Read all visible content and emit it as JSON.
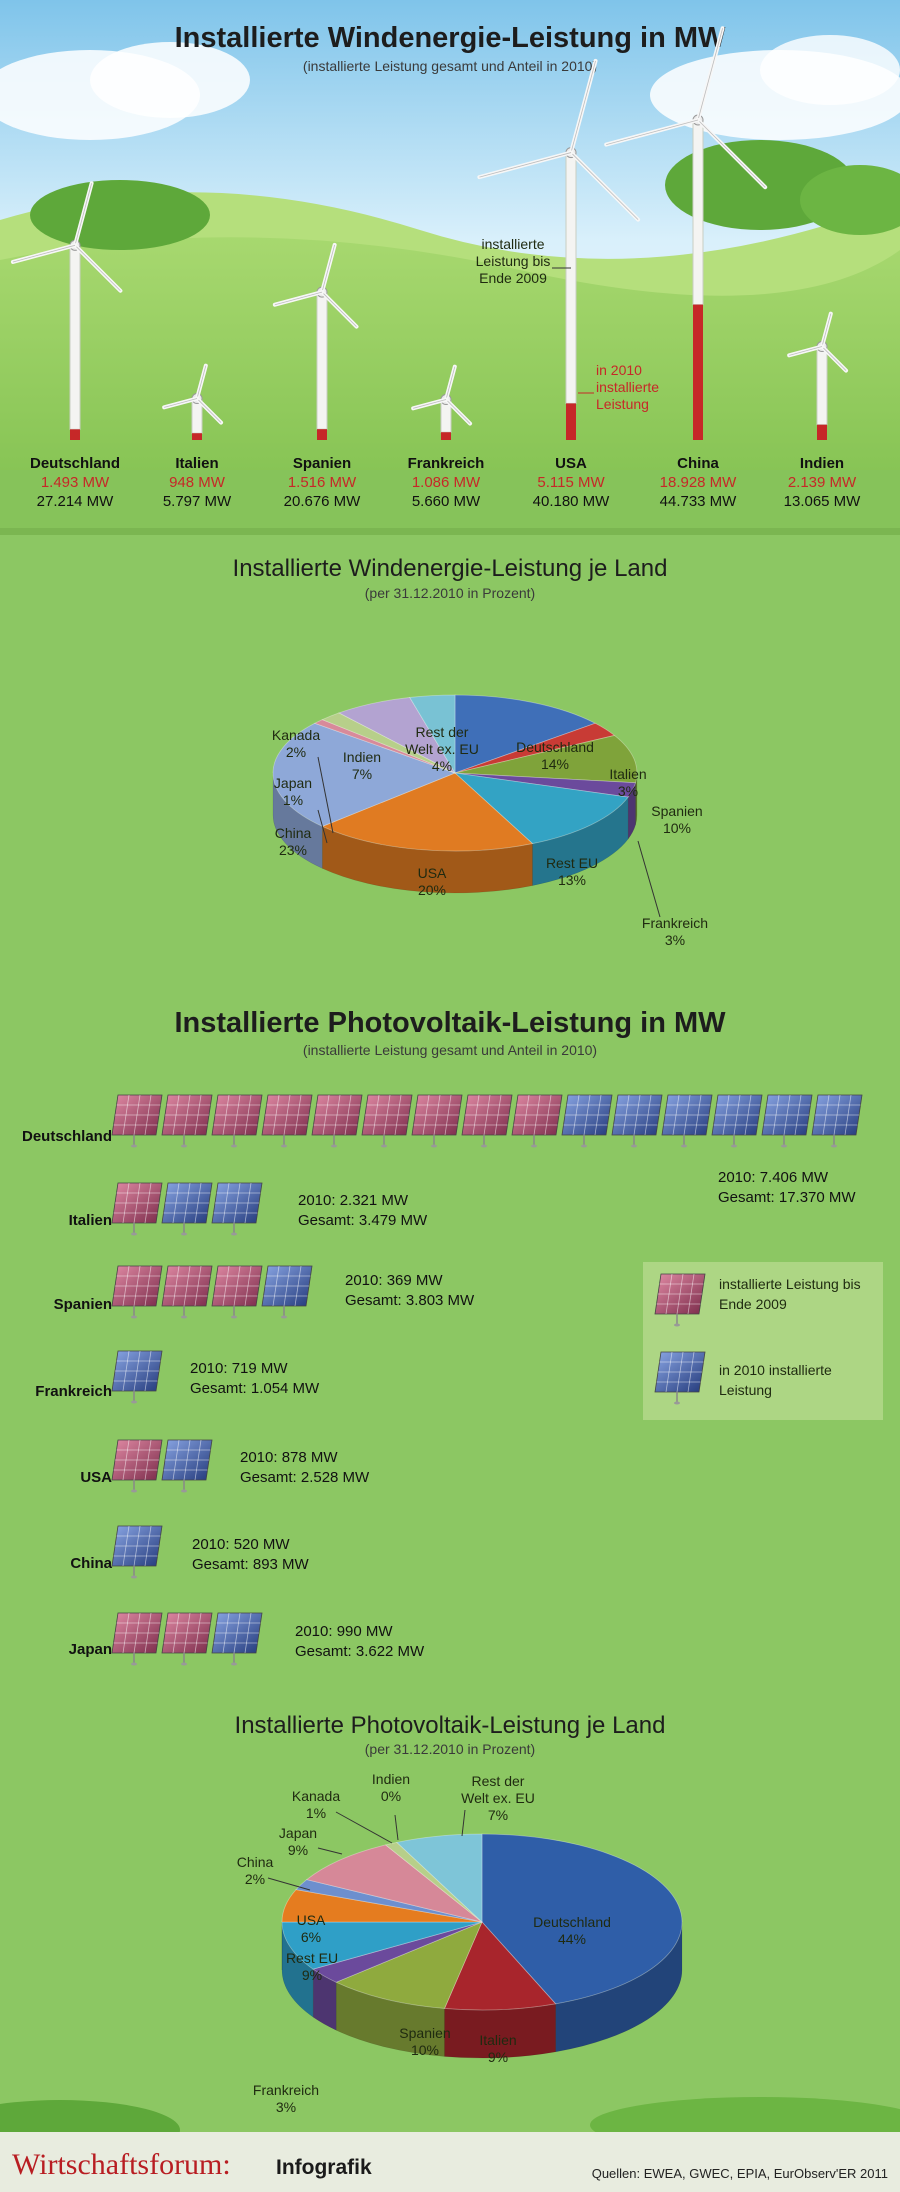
{
  "colors": {
    "sky": "#bfe3f5",
    "grass": "#8cc763",
    "red": "#c62828",
    "panel_red": "#b0486b",
    "panel_blue": "#3c5fae"
  },
  "wind": {
    "title": "Installierte Windenergie-Leistung in MW",
    "subtitle": "(installierte Leistung gesamt und Anteil in 2010)",
    "annot_total": "installierte Leistung bis Ende 2009",
    "annot_2010": "in 2010 installierte Leistung",
    "countries": [
      {
        "name": "Deutschland",
        "y2010": "1.493 MW",
        "total": "27.214 MW"
      },
      {
        "name": "Italien",
        "y2010": "948 MW",
        "total": "5.797 MW"
      },
      {
        "name": "Spanien",
        "y2010": "1.516 MW",
        "total": "20.676 MW"
      },
      {
        "name": "Frankreich",
        "y2010": "1.086 MW",
        "total": "5.660 MW"
      },
      {
        "name": "USA",
        "y2010": "5.115 MW",
        "total": "40.180 MW"
      },
      {
        "name": "China",
        "y2010": "18.928 MW",
        "total": "44.733 MW"
      },
      {
        "name": "Indien",
        "y2010": "2.139 MW",
        "total": "13.065 MW"
      }
    ]
  },
  "chart_data": [
    {
      "type": "bar",
      "title": "Installierte Windenergie-Leistung in MW",
      "subtitle": "(installierte Leistung gesamt und Anteil in 2010)",
      "categories": [
        "Deutschland",
        "Italien",
        "Spanien",
        "Frankreich",
        "USA",
        "China",
        "Indien"
      ],
      "series": [
        {
          "name": "installierte Leistung bis Ende 2009",
          "values": [
            25721,
            4849,
            19160,
            4574,
            35065,
            25805,
            10926
          ]
        },
        {
          "name": "in 2010 installierte Leistung",
          "values": [
            1493,
            948,
            1516,
            1086,
            5115,
            18928,
            2139
          ]
        }
      ]
    },
    {
      "type": "pie",
      "title": "Installierte Windenergie-Leistung je Land",
      "subtitle": "(per 31.12.2010 in Prozent)",
      "labels": [
        "Deutschland",
        "Italien",
        "Spanien",
        "Frankreich",
        "Rest EU",
        "USA",
        "China",
        "Japan",
        "Kanada",
        "Indien",
        "Rest der Welt ex. EU"
      ],
      "values": [
        14,
        3,
        10,
        3,
        13,
        20,
        23,
        1,
        2,
        7,
        4
      ],
      "value_labels": [
        "14%",
        "3%",
        "10%",
        "3%",
        "13%",
        "20%",
        "23%",
        "1%",
        "2%",
        "7%",
        "4%"
      ]
    },
    {
      "type": "bar",
      "title": "Installierte Photovoltaik-Leistung in MW",
      "subtitle": "(installierte Leistung gesamt und Anteil in 2010)",
      "categories": [
        "Deutschland",
        "Italien",
        "Spanien",
        "Frankreich",
        "USA",
        "China",
        "Japan"
      ],
      "series": [
        {
          "name": "installierte Leistung bis Ende 2009",
          "values": [
            9964,
            1158,
            3434,
            335,
            1650,
            373,
            2632
          ]
        },
        {
          "name": "in 2010 installierte Leistung",
          "values": [
            7406,
            2321,
            369,
            719,
            878,
            520,
            990
          ]
        }
      ]
    },
    {
      "type": "pie",
      "title": "Installierte Photovoltaik-Leistung je Land",
      "subtitle": "(per 31.12.2010 in Prozent)",
      "labels": [
        "Deutschland",
        "Italien",
        "Spanien",
        "Frankreich",
        "Rest EU",
        "USA",
        "China",
        "Japan",
        "Kanada",
        "Indien",
        "Rest der Welt ex. EU"
      ],
      "values": [
        44,
        9,
        10,
        3,
        9,
        6,
        2,
        9,
        1,
        0,
        7
      ],
      "value_labels": [
        "44%",
        "9%",
        "10%",
        "3%",
        "9%",
        "6%",
        "2%",
        "9%",
        "1%",
        "0%",
        "7%"
      ]
    }
  ],
  "pie_wind": {
    "title": "Installierte Windenergie-Leistung je Land",
    "subtitle": "(per 31.12.2010 in Prozent)"
  },
  "pv": {
    "title": "Installierte Photovoltaik-Leistung in MW",
    "subtitle": "(installierte Leistung gesamt und Anteil in 2010)",
    "rows": [
      {
        "name": "Deutschland",
        "y2010": "2010: 7.406 MW",
        "total": "Gesamt: 17.370 MW",
        "red": 9,
        "blue": 6
      },
      {
        "name": "Italien",
        "y2010": "2010: 2.321 MW",
        "total": "Gesamt: 3.479 MW",
        "red": 1,
        "blue": 2
      },
      {
        "name": "Spanien",
        "y2010": "2010: 369 MW",
        "total": "Gesamt: 3.803 MW",
        "red": 3,
        "blue": 1
      },
      {
        "name": "Frankreich",
        "y2010": "2010: 719 MW",
        "total": "Gesamt: 1.054 MW",
        "red": 0,
        "blue": 1
      },
      {
        "name": "USA",
        "y2010": "2010: 878 MW",
        "total": "Gesamt: 2.528 MW",
        "red": 1,
        "blue": 1
      },
      {
        "name": "China",
        "y2010": "2010: 520 MW",
        "total": "Gesamt: 893 MW",
        "red": 0,
        "blue": 1
      },
      {
        "name": "Japan",
        "y2010": "2010: 990 MW",
        "total": "Gesamt: 3.622 MW",
        "red": 2,
        "blue": 1
      }
    ],
    "legend_2009": "installierte Leistung bis Ende 2009",
    "legend_2010": "in 2010 installierte Leistung"
  },
  "pie_pv": {
    "title": "Installierte Photovoltaik-Leistung je Land",
    "subtitle": "(per 31.12.2010 in Prozent)"
  },
  "footer": {
    "brand": "Wirtschaftsforum:",
    "brand_suffix": "Infografik",
    "sources": "Quellen: EWEA, GWEC, EPIA, EurObserv'ER 2011"
  }
}
